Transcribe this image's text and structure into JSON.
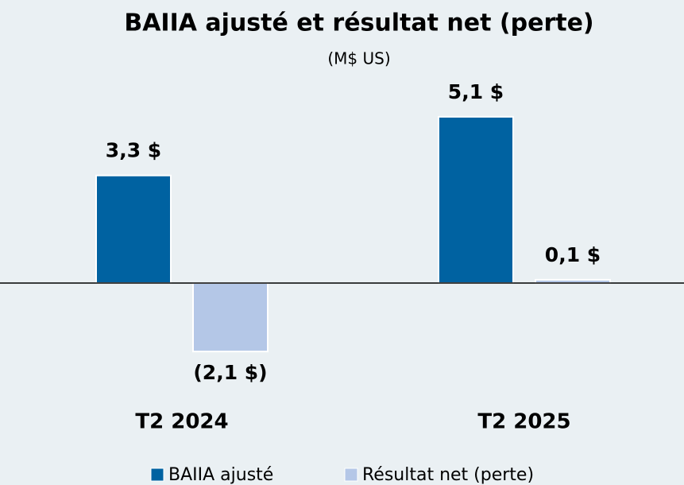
{
  "chart_data": {
    "type": "bar",
    "title": "BAIIA ajusté et résultat net (perte)",
    "subtitle": "(M$ US)",
    "categories": [
      "T2 2024",
      "T2 2025"
    ],
    "series": [
      {
        "name": "BAIIA ajusté",
        "color": "#0062a1",
        "values": [
          3.3,
          5.1
        ],
        "value_labels": [
          "3,3 $",
          "5,1 $"
        ]
      },
      {
        "name": "Résultat net (perte)",
        "color": "#b4c7e7",
        "values": [
          -2.1,
          0.1
        ],
        "value_labels": [
          "(2,1 $)",
          "0,1 $"
        ]
      }
    ],
    "ylim": [
      -3,
      6
    ]
  }
}
